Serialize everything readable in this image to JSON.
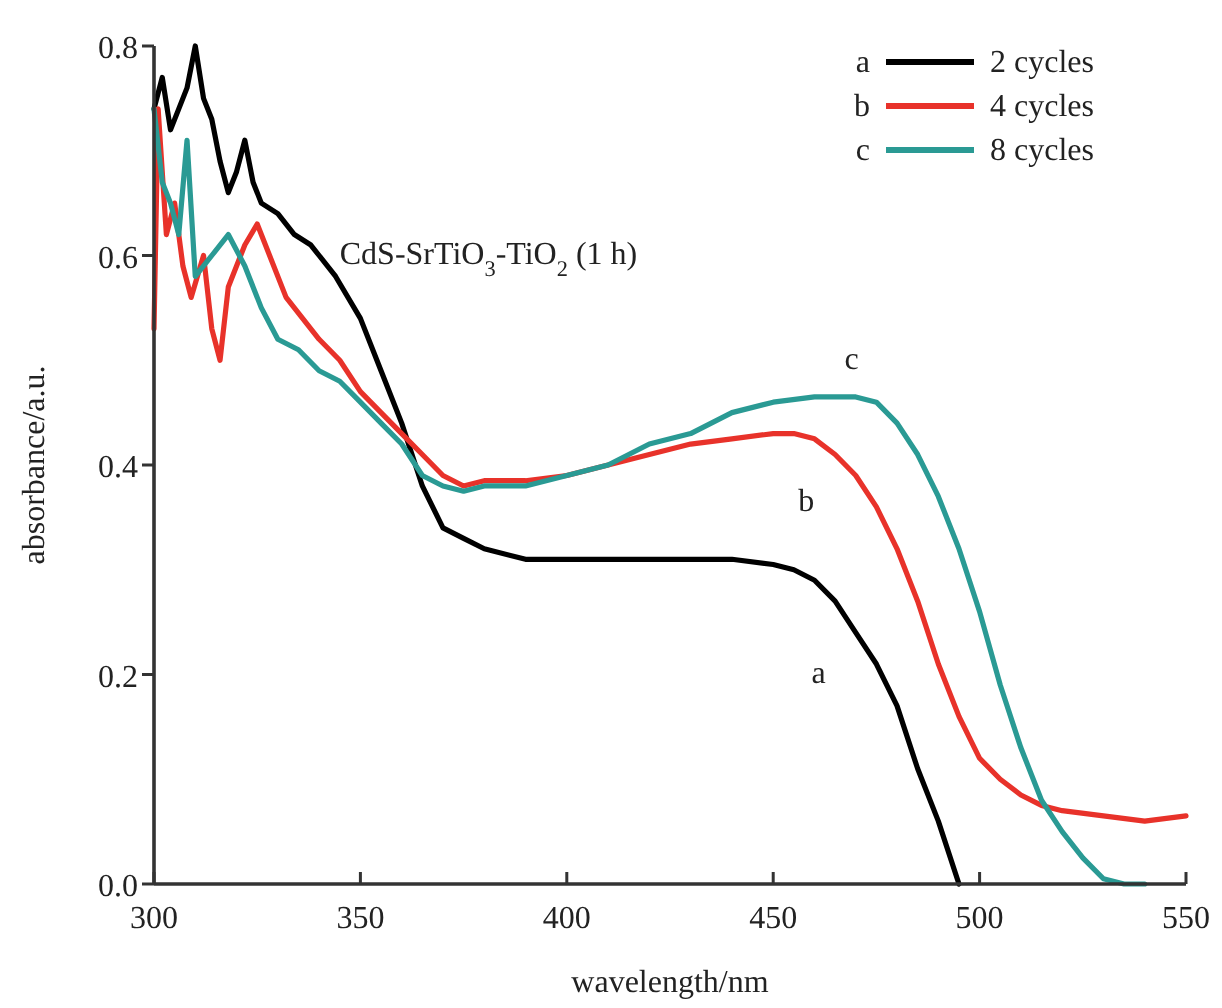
{
  "chart_data": {
    "type": "line",
    "title": "CdS-SrTiO$_{3}$-TiO$_{2}$ (1 h)",
    "xlabel": "wavelength/nm",
    "ylabel": "absorbance/a.u.",
    "xlim": [
      300,
      550
    ],
    "xticks": [
      300,
      350,
      400,
      450,
      500,
      550
    ],
    "ylim": [
      0,
      0.8
    ],
    "yticks": [
      {
        "value": 0,
        "label": "0.0"
      },
      0.2,
      0.4,
      0.6,
      0.8
    ],
    "legend": "top right",
    "grid": false,
    "line_style": "solid",
    "series": [
      {
        "name": "2 cycles",
        "color": "#000000",
        "x": [
          300,
          302,
          304,
          306,
          308,
          310,
          312,
          314,
          316,
          318,
          320,
          322,
          324,
          326,
          330,
          334,
          338,
          340,
          344,
          350,
          355,
          360,
          365,
          370,
          375,
          380,
          390,
          400,
          420,
          440,
          450,
          455,
          460,
          465,
          470,
          475,
          480,
          485,
          490,
          495
        ],
        "values": [
          0.74,
          0.77,
          0.72,
          0.74,
          0.76,
          0.8,
          0.75,
          0.73,
          0.69,
          0.66,
          0.68,
          0.71,
          0.67,
          0.65,
          0.64,
          0.62,
          0.61,
          0.6,
          0.58,
          0.54,
          0.49,
          0.44,
          0.38,
          0.34,
          0.33,
          0.32,
          0.31,
          0.31,
          0.31,
          0.31,
          0.305,
          0.3,
          0.29,
          0.27,
          0.24,
          0.21,
          0.17,
          0.11,
          0.06,
          0.0
        ]
      },
      {
        "name": "4 cycles",
        "color": "#e8322a",
        "x": [
          300,
          301,
          303,
          305,
          307,
          309,
          312,
          314,
          316,
          318,
          322,
          325,
          328,
          332,
          336,
          340,
          345,
          350,
          355,
          360,
          365,
          370,
          375,
          380,
          390,
          400,
          410,
          420,
          430,
          440,
          450,
          455,
          460,
          465,
          470,
          475,
          480,
          485,
          490,
          495,
          500,
          505,
          510,
          515,
          520,
          530,
          540,
          550
        ],
        "values": [
          0.53,
          0.74,
          0.62,
          0.65,
          0.59,
          0.56,
          0.6,
          0.53,
          0.5,
          0.57,
          0.61,
          0.63,
          0.6,
          0.56,
          0.54,
          0.52,
          0.5,
          0.47,
          0.45,
          0.43,
          0.41,
          0.39,
          0.38,
          0.385,
          0.385,
          0.39,
          0.4,
          0.41,
          0.42,
          0.425,
          0.43,
          0.43,
          0.425,
          0.41,
          0.39,
          0.36,
          0.32,
          0.27,
          0.21,
          0.16,
          0.12,
          0.1,
          0.085,
          0.075,
          0.07,
          0.065,
          0.06,
          0.065
        ]
      },
      {
        "name": "8 cycles",
        "color": "#2a9a94",
        "x": [
          300,
          302,
          304,
          306,
          308,
          310,
          314,
          318,
          322,
          326,
          330,
          335,
          340,
          345,
          350,
          355,
          360,
          365,
          370,
          375,
          380,
          390,
          400,
          410,
          420,
          430,
          440,
          450,
          460,
          470,
          475,
          480,
          485,
          490,
          495,
          500,
          505,
          510,
          515,
          520,
          525,
          530,
          535,
          540
        ],
        "values": [
          0.74,
          0.67,
          0.65,
          0.62,
          0.71,
          0.58,
          0.6,
          0.62,
          0.59,
          0.55,
          0.52,
          0.51,
          0.49,
          0.48,
          0.46,
          0.44,
          0.42,
          0.39,
          0.38,
          0.375,
          0.38,
          0.38,
          0.39,
          0.4,
          0.42,
          0.43,
          0.45,
          0.46,
          0.465,
          0.465,
          0.46,
          0.44,
          0.41,
          0.37,
          0.32,
          0.26,
          0.19,
          0.13,
          0.08,
          0.05,
          0.025,
          0.005,
          0.0,
          0.0
        ]
      }
    ],
    "annotations": [
      "a",
      "b",
      "c"
    ]
  }
}
